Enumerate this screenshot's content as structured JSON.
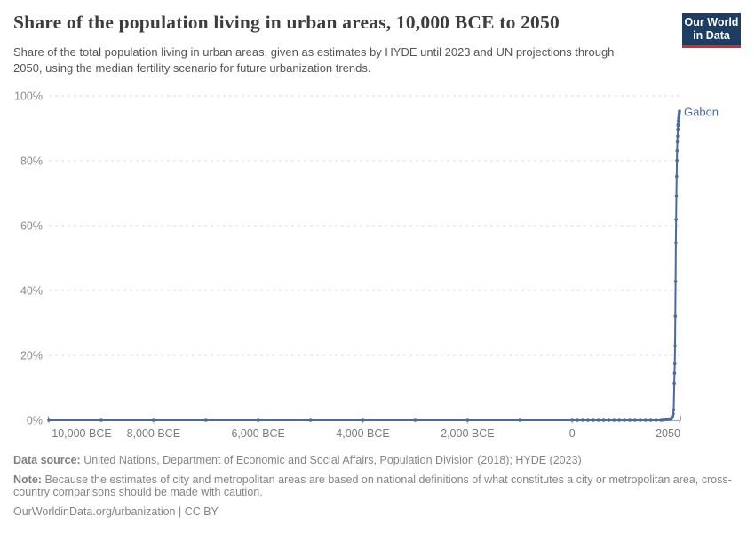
{
  "header": {
    "title": "Share of the population living in urban areas, 10,000 BCE to 2050",
    "subtitle": "Share of the total population living in urban areas, given as estimates by HYDE until 2023 and UN projections through 2050, using the median fertility scenario for future urbanization trends.",
    "logo": {
      "line1": "Our World",
      "line2": "in Data",
      "bg_color": "#1d3d63",
      "accent_color": "#dc2a23"
    }
  },
  "chart_data": {
    "type": "line",
    "title": "Share of the population living in urban areas, 10,000 BCE to 2050",
    "entity": "Gabon",
    "unit": "%",
    "line_color": "#4c6a9c",
    "grid": "horizontal-dashed",
    "x_domain": [
      -10000,
      2050
    ],
    "y_domain": [
      0,
      100
    ],
    "x_ticks": [
      {
        "year": -10000,
        "label": "10,000 BCE"
      },
      {
        "year": -8000,
        "label": "8,000 BCE"
      },
      {
        "year": -6000,
        "label": "6,000 BCE"
      },
      {
        "year": -4000,
        "label": "4,000 BCE"
      },
      {
        "year": -2000,
        "label": "2,000 BCE"
      },
      {
        "year": 0,
        "label": "0"
      },
      {
        "year": 2050,
        "label": "2050"
      }
    ],
    "y_ticks": [
      {
        "value": 0,
        "label": "0%"
      },
      {
        "value": 20,
        "label": "20%"
      },
      {
        "value": 40,
        "label": "40%"
      },
      {
        "value": 60,
        "label": "60%"
      },
      {
        "value": 80,
        "label": "80%"
      },
      {
        "value": 100,
        "label": "100%"
      }
    ],
    "series": [
      {
        "name": "Gabon",
        "points": [
          [
            -10000,
            0
          ],
          [
            -9000,
            0
          ],
          [
            -8000,
            0
          ],
          [
            -7000,
            0
          ],
          [
            -6000,
            0
          ],
          [
            -5000,
            0
          ],
          [
            -4000,
            0
          ],
          [
            -3000,
            0
          ],
          [
            -2000,
            0
          ],
          [
            -1000,
            0
          ],
          [
            0,
            0
          ],
          [
            100,
            0
          ],
          [
            200,
            0
          ],
          [
            300,
            0
          ],
          [
            400,
            0
          ],
          [
            500,
            0
          ],
          [
            600,
            0
          ],
          [
            700,
            0
          ],
          [
            800,
            0
          ],
          [
            900,
            0
          ],
          [
            1000,
            0
          ],
          [
            1100,
            0
          ],
          [
            1200,
            0
          ],
          [
            1300,
            0
          ],
          [
            1400,
            0
          ],
          [
            1500,
            0
          ],
          [
            1600,
            0
          ],
          [
            1700,
            0
          ],
          [
            1750,
            0.1
          ],
          [
            1800,
            0.2
          ],
          [
            1850,
            0.3
          ],
          [
            1880,
            0.4
          ],
          [
            1890,
            0.5
          ],
          [
            1900,
            0.7
          ],
          [
            1910,
            1.0
          ],
          [
            1920,
            1.4
          ],
          [
            1930,
            2.0
          ],
          [
            1940,
            3.2
          ],
          [
            1950,
            11.4
          ],
          [
            1955,
            14.5
          ],
          [
            1960,
            17.4
          ],
          [
            1965,
            22.9
          ],
          [
            1970,
            32.0
          ],
          [
            1975,
            42.8
          ],
          [
            1980,
            54.7
          ],
          [
            1985,
            61.9
          ],
          [
            1990,
            69.1
          ],
          [
            1995,
            75.2
          ],
          [
            2000,
            80.1
          ],
          [
            2005,
            83.1
          ],
          [
            2010,
            85.9
          ],
          [
            2015,
            87.6
          ],
          [
            2020,
            89.7
          ],
          [
            2023,
            90.8
          ],
          [
            2025,
            91.2
          ],
          [
            2030,
            92.3
          ],
          [
            2035,
            93.1
          ],
          [
            2040,
            93.9
          ],
          [
            2045,
            94.6
          ],
          [
            2050,
            95.3
          ]
        ]
      }
    ]
  },
  "footer": {
    "sources_label": "Data source:",
    "sources": "United Nations, Department of Economic and Social Affairs, Population Division (2018); HYDE (2023)",
    "note_label": "Note:",
    "note": "Because the estimates of city and metropolitan areas are based on national definitions of what constitutes a city or metropolitan area, cross-country comparisons should be made with caution.",
    "origin": "OurWorldinData.org/urbanization | CC BY"
  }
}
